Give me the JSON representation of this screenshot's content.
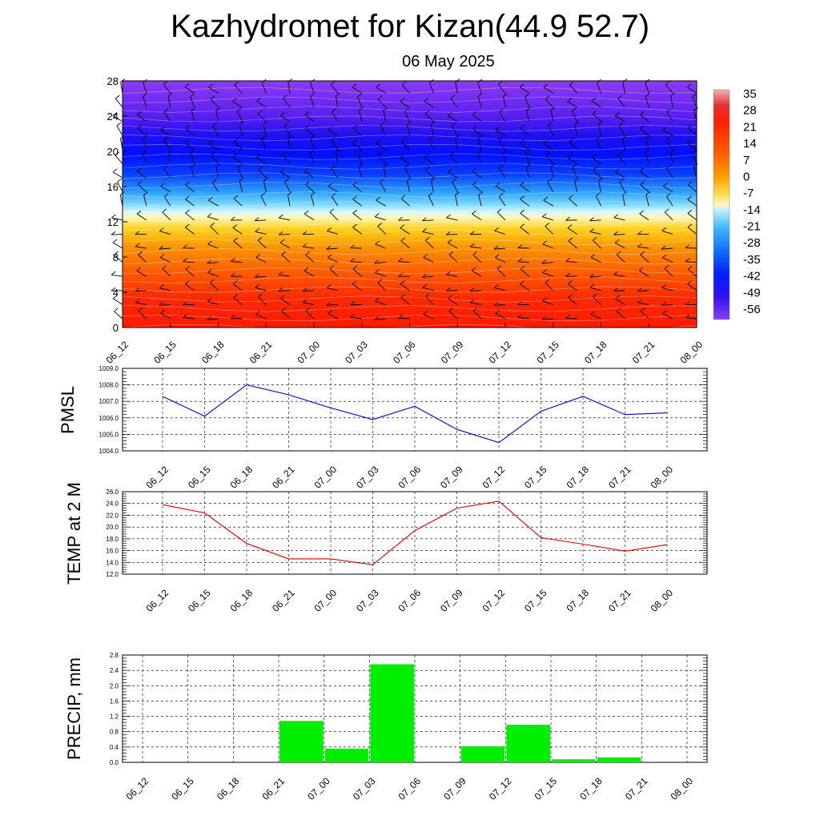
{
  "title": "Kazhydromet for Kizan(44.9 52.7)",
  "subtitle": "06 May 2025",
  "time_labels": [
    "06_12",
    "06_15",
    "06_18",
    "06_21",
    "07_00",
    "07_03",
    "07_06",
    "07_09",
    "07_12",
    "07_15",
    "07_18",
    "07_21",
    "08_00"
  ],
  "chart_data": [
    {
      "type": "heatmap",
      "name": "temperature-height cross-section",
      "x": [
        "06_12",
        "06_15",
        "06_18",
        "06_21",
        "07_00",
        "07_03",
        "07_06",
        "07_09",
        "07_12",
        "07_15",
        "07_18",
        "07_21",
        "08_00"
      ],
      "y_ticks": [
        0,
        4,
        8,
        12,
        16,
        20,
        24,
        28
      ],
      "ylim": [
        0,
        28
      ],
      "colorbar_labels": [
        "35",
        "28",
        "21",
        "14",
        "7",
        "0",
        "-7",
        "-14",
        "-21",
        "-28",
        "-35",
        "-42",
        "-49",
        "-56"
      ],
      "colorbar_colors": [
        "#f4a6a6",
        "#e0202a",
        "#ff2a00",
        "#ff5500",
        "#ff8a00",
        "#ffc000",
        "#fff4a0",
        "#b6f0ff",
        "#3cb8ff",
        "#1060ff",
        "#0018ff",
        "#3300f0",
        "#5a20f0",
        "#8a40f0"
      ],
      "freezing_level": 13,
      "grid": false
    },
    {
      "type": "line",
      "name": "PMSL",
      "ylabel": "PMSL",
      "x": [
        "06_12",
        "06_15",
        "06_18",
        "06_21",
        "07_00",
        "07_03",
        "07_06",
        "07_09",
        "07_12",
        "07_15",
        "07_18",
        "07_21",
        "08_00"
      ],
      "values": [
        1007.3,
        1006.1,
        1008.0,
        1007.4,
        1006.6,
        1005.9,
        1006.7,
        1005.3,
        1004.5,
        1006.4,
        1007.3,
        1006.2,
        1006.3
      ],
      "ylim": [
        1004.0,
        1009.0
      ],
      "y_ticks": [
        "1004.0",
        "1005.0",
        "1006.0",
        "1007.0",
        "1008.0",
        "1009.0"
      ],
      "color": "#0000cc",
      "grid": true
    },
    {
      "type": "line",
      "name": "TEMP at 2 M",
      "ylabel": "TEMP at 2 M",
      "x": [
        "06_12",
        "06_15",
        "06_18",
        "06_21",
        "07_00",
        "07_03",
        "07_06",
        "07_09",
        "07_12",
        "07_15",
        "07_18",
        "07_21",
        "08_00"
      ],
      "values": [
        23.8,
        22.4,
        17.2,
        14.6,
        14.6,
        13.6,
        19.4,
        23.2,
        24.4,
        18.2,
        17.1,
        15.9,
        17.0
      ],
      "ylim": [
        12.0,
        26.0
      ],
      "y_ticks": [
        "12.0",
        "14.0",
        "16.0",
        "18.0",
        "20.0",
        "22.0",
        "24.0",
        "26.0"
      ],
      "color": "#dd0000",
      "grid": true
    },
    {
      "type": "bar",
      "name": "PRECIP, mm",
      "ylabel": "PRECIP, mm",
      "categories": [
        "06_12",
        "06_15",
        "06_18",
        "06_21",
        "07_00",
        "07_03",
        "07_06",
        "07_09",
        "07_12",
        "07_15",
        "07_18",
        "07_21",
        "08_00"
      ],
      "bars": [
        {
          "start": "06_21",
          "end": "07_00",
          "value": 1.08
        },
        {
          "start": "07_00",
          "end": "07_03",
          "value": 0.36
        },
        {
          "start": "07_03",
          "end": "07_06",
          "value": 2.56
        },
        {
          "start": "07_06",
          "end": "07_09",
          "value": 0.0
        },
        {
          "start": "07_09",
          "end": "07_12",
          "value": 0.42
        },
        {
          "start": "07_12",
          "end": "07_15",
          "value": 0.98
        },
        {
          "start": "07_15",
          "end": "07_18",
          "value": 0.08
        },
        {
          "start": "07_18",
          "end": "07_21",
          "value": 0.13
        }
      ],
      "ylim": [
        0.0,
        2.8
      ],
      "y_ticks": [
        "0.0",
        "0.4",
        "0.8",
        "1.2",
        "1.6",
        "2.0",
        "2.4",
        "2.8"
      ],
      "color": "#00ee00",
      "grid": true
    }
  ]
}
